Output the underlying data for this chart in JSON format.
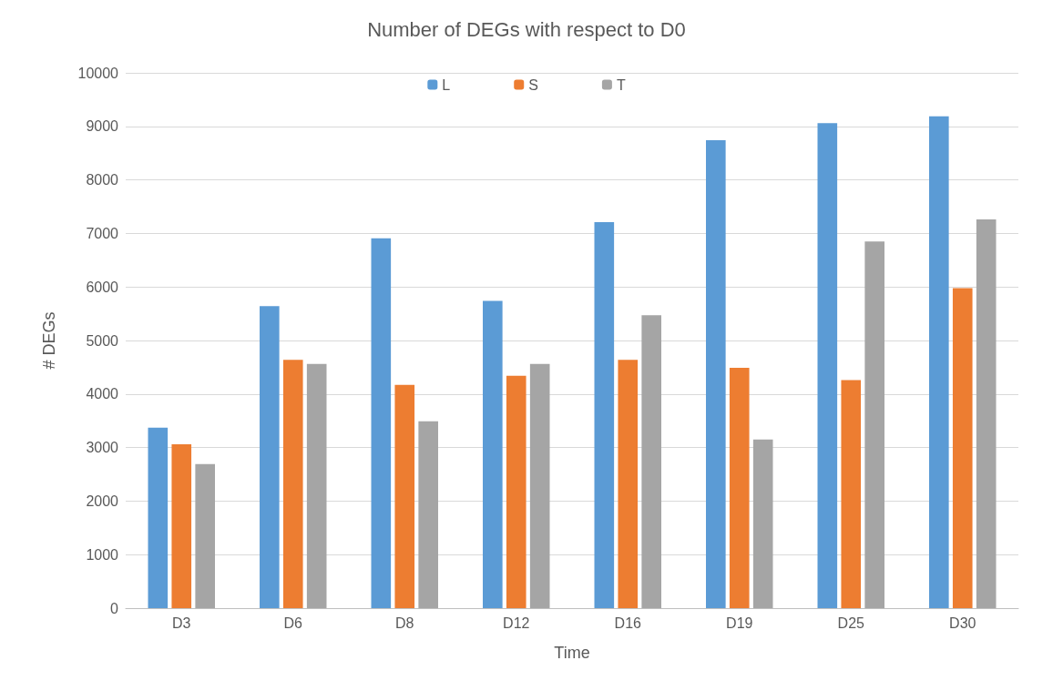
{
  "chart_data": {
    "type": "bar",
    "title": "Number of DEGs with respect to D0",
    "xlabel": "Time",
    "ylabel": "# DEGs",
    "categories": [
      "D3",
      "D6",
      "D8",
      "D12",
      "D16",
      "D19",
      "D25",
      "D30"
    ],
    "series": [
      {
        "name": "L",
        "color": "#5b9bd5",
        "values": [
          3370,
          5640,
          6910,
          5740,
          7210,
          8740,
          9060,
          9190
        ]
      },
      {
        "name": "S",
        "color": "#ed7d31",
        "values": [
          3060,
          4640,
          4170,
          4340,
          4640,
          4490,
          4260,
          5980
        ]
      },
      {
        "name": "T",
        "color": "#a5a5a5",
        "values": [
          2690,
          4560,
          3490,
          4560,
          5470,
          3150,
          6850,
          7260
        ]
      }
    ],
    "ylim": [
      0,
      10000
    ],
    "yticks": [
      0,
      1000,
      2000,
      3000,
      4000,
      5000,
      6000,
      7000,
      8000,
      9000,
      10000
    ],
    "grid": "y",
    "legend": "top"
  }
}
